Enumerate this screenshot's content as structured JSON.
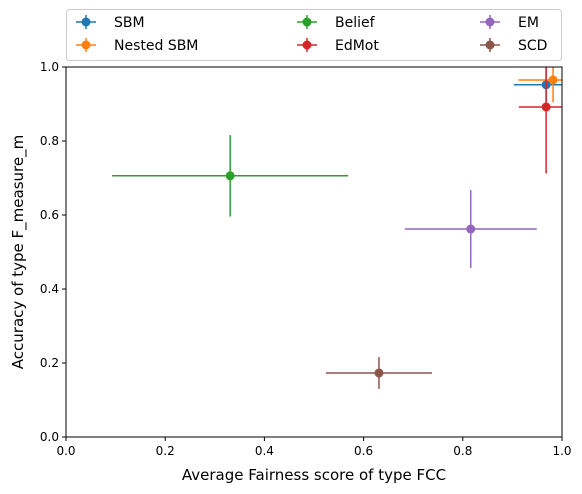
{
  "chart_data": {
    "type": "scatter",
    "xlabel": "Average Fairness score of type FCC",
    "ylabel": "Accuracy of type F_measure_m",
    "xlim": [
      0.0,
      1.0
    ],
    "ylim": [
      0.0,
      1.0
    ],
    "xticks": [
      "0.0",
      "0.2",
      "0.4",
      "0.6",
      "0.8",
      "1.0"
    ],
    "yticks": [
      "0.0",
      "0.2",
      "0.4",
      "0.6",
      "0.8",
      "1.0"
    ],
    "grid": false,
    "legend_position": "top, outside, 3 columns",
    "series": [
      {
        "name": "SBM",
        "color": "#1f77b4",
        "x": 0.968,
        "y": 0.952,
        "xerr": 0.065,
        "yerr": 0.06
      },
      {
        "name": "Nested SBM",
        "color": "#ff7f0e",
        "x": 0.982,
        "y": 0.965,
        "xerr": 0.07,
        "yerr": 0.06
      },
      {
        "name": "Belief",
        "color": "#2ca02c",
        "x": 0.331,
        "y": 0.706,
        "xerr": 0.238,
        "yerr": 0.11
      },
      {
        "name": "EdMot",
        "color": "#d62728",
        "x": 0.968,
        "y": 0.892,
        "xerr": 0.055,
        "yerr": 0.18
      },
      {
        "name": "EM",
        "color": "#9467bd",
        "x": 0.816,
        "y": 0.562,
        "xerr": 0.133,
        "yerr": 0.105
      },
      {
        "name": "SCD",
        "color": "#8c564b",
        "x": 0.631,
        "y": 0.173,
        "xerr": 0.107,
        "yerr": 0.043
      }
    ]
  }
}
